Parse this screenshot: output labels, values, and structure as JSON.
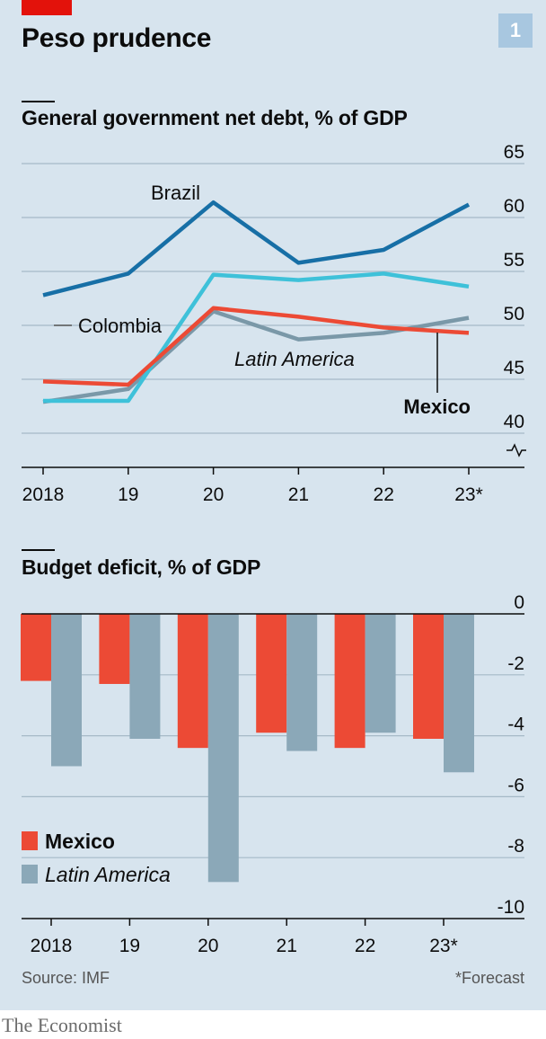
{
  "chart_number": "1",
  "title": "Peso prudence",
  "source": "Source: IMF",
  "footnote": "*Forecast",
  "brand": "The Economist",
  "colors": {
    "background": "#d7e4ee",
    "brazil": "#176fa6",
    "colombia": "#3ec1d9",
    "mexico": "#ec4a35",
    "latin_america": "#7a98a8",
    "bar_mexico": "#ec4a35",
    "bar_latin_america": "#8ba8b8",
    "accent_red": "#e3120b"
  },
  "chart_data": [
    {
      "type": "line",
      "title": "General government net debt, % of GDP",
      "x": [
        "2018",
        "19",
        "20",
        "21",
        "22",
        "23*"
      ],
      "ylim": [
        40,
        65
      ],
      "yticks": [
        "65",
        "60",
        "55",
        "50",
        "45",
        "40"
      ],
      "axis_break": true,
      "grid": true,
      "series": [
        {
          "name": "Brazil",
          "values": [
            52.8,
            54.8,
            61.4,
            55.8,
            57.0,
            61.2
          ]
        },
        {
          "name": "Colombia",
          "values": [
            43.0,
            43.0,
            54.7,
            54.2,
            54.8,
            53.6
          ]
        },
        {
          "name": "Mexico",
          "values": [
            44.8,
            44.5,
            51.6,
            50.8,
            49.8,
            49.3
          ]
        },
        {
          "name": "Latin America",
          "values": [
            42.9,
            44.1,
            51.3,
            48.7,
            49.3,
            50.7
          ]
        }
      ]
    },
    {
      "type": "bar",
      "title": "Budget deficit, % of GDP",
      "categories": [
        "2018",
        "19",
        "20",
        "21",
        "22",
        "23*"
      ],
      "ylim": [
        -10,
        0
      ],
      "yticks": [
        "0",
        "-2",
        "-4",
        "-6",
        "-8",
        "-10"
      ],
      "legend": "bottom-left",
      "series": [
        {
          "name": "Mexico",
          "values": [
            -2.2,
            -2.3,
            -4.4,
            -3.9,
            -4.4,
            -4.1
          ]
        },
        {
          "name": "Latin America",
          "values": [
            -5.0,
            -4.1,
            -8.8,
            -4.5,
            -3.9,
            -5.2
          ]
        }
      ]
    }
  ]
}
